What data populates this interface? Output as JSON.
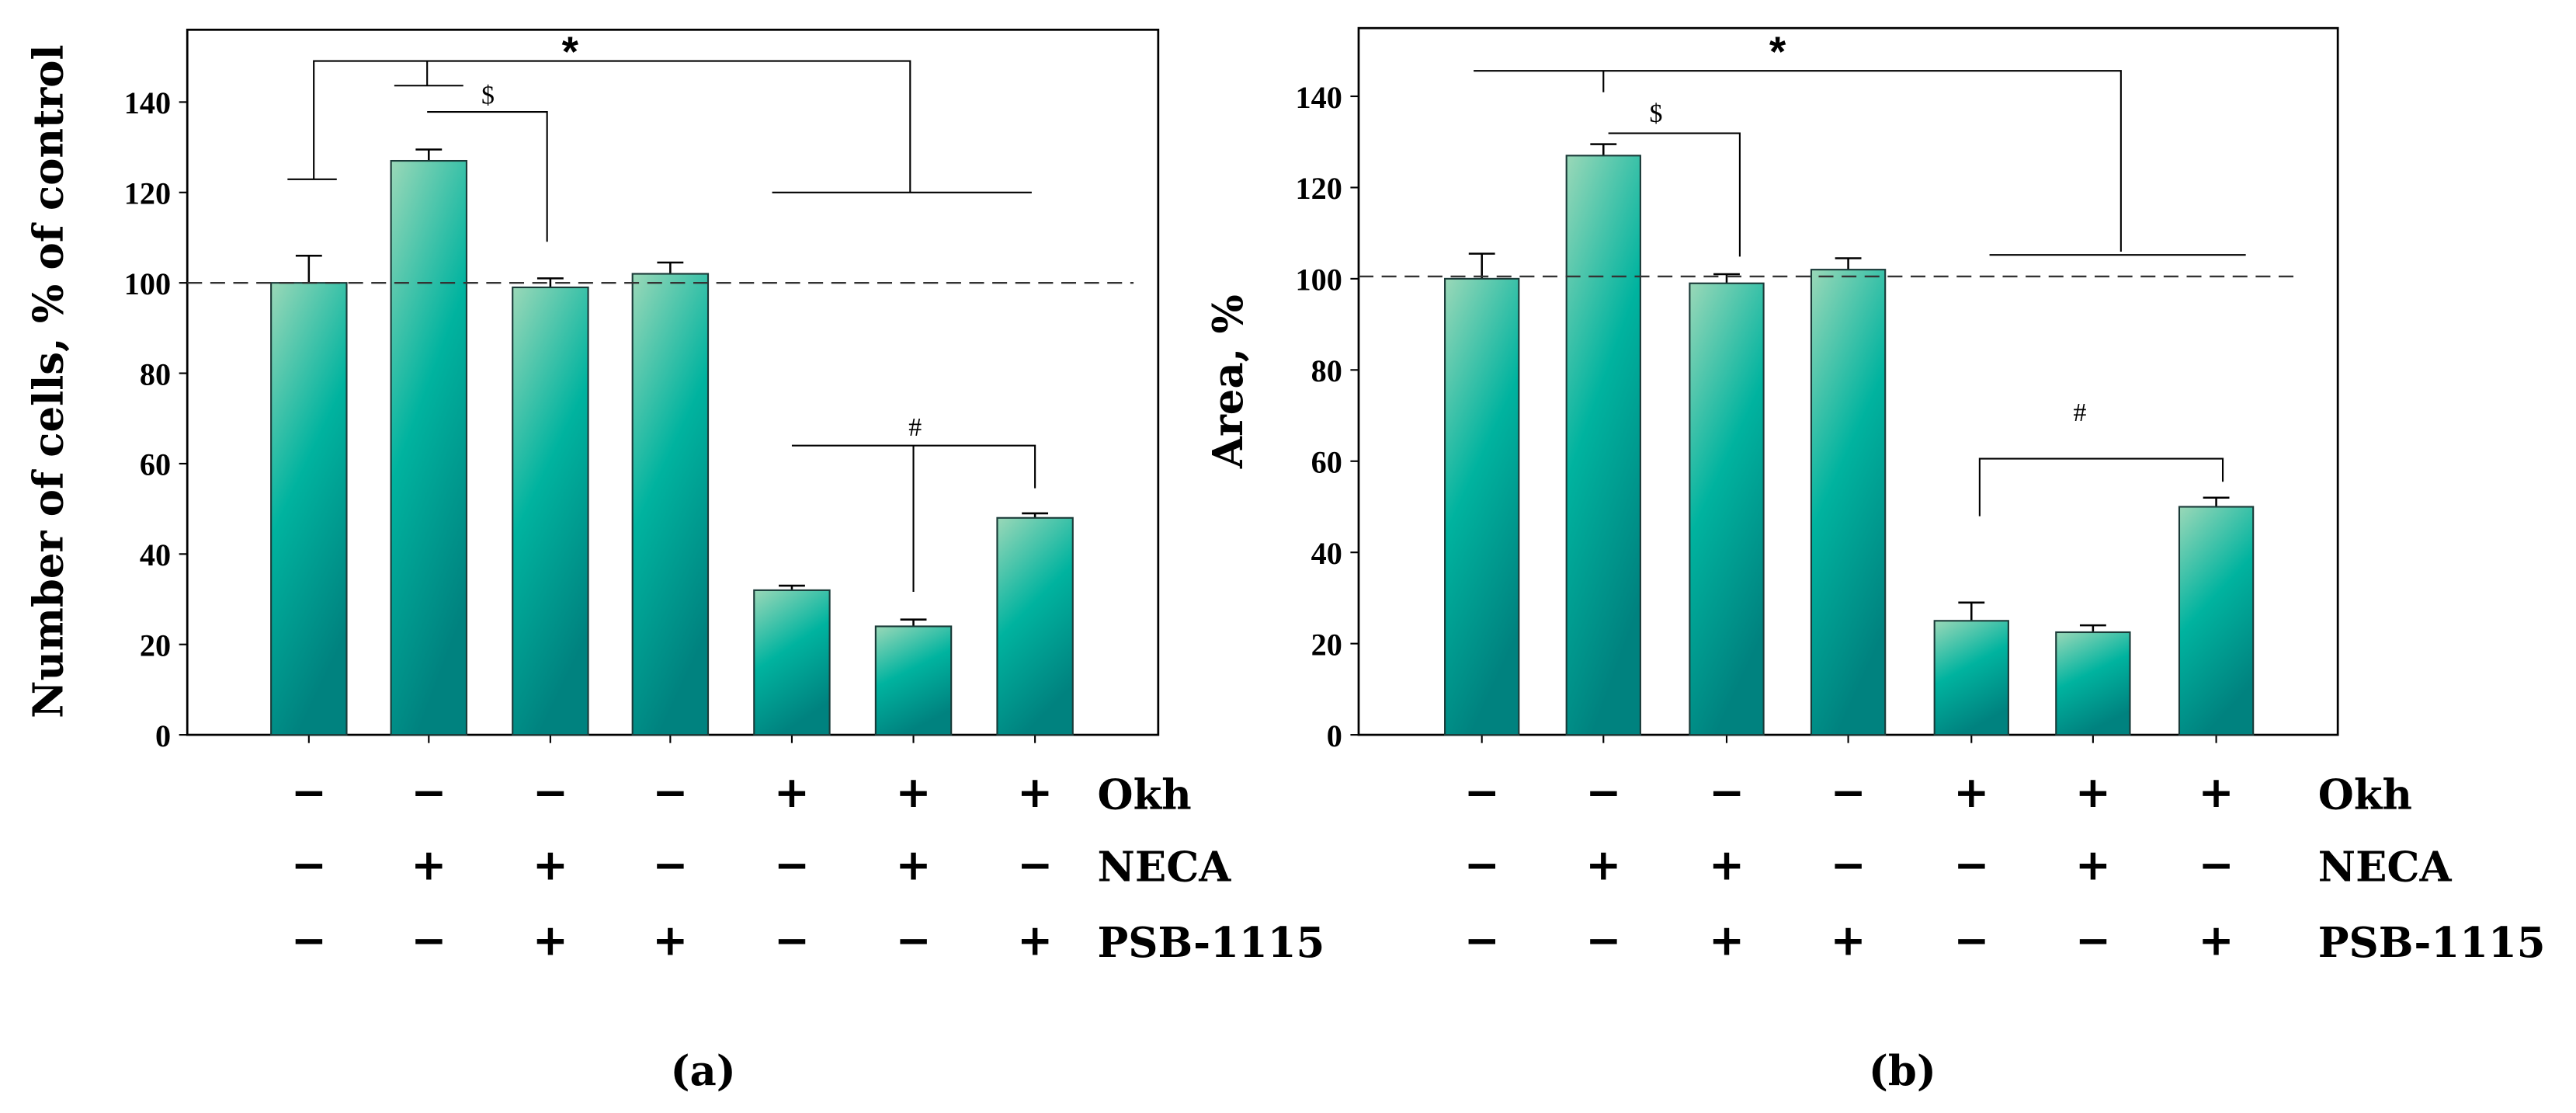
{
  "chart_data": [
    {
      "type": "bar",
      "panel_label": "(a)",
      "ylabel": "Number of cells, % of control",
      "ylim": [
        0,
        156
      ],
      "yticks": [
        "0",
        "20",
        "40",
        "60",
        "80",
        "100",
        "120",
        "140"
      ],
      "values": [
        100,
        127,
        99,
        102,
        32,
        24,
        48
      ],
      "errors": [
        6,
        2.5,
        2,
        2.5,
        1,
        1.5,
        1
      ],
      "reference_line": 100,
      "annotations": [
        "*",
        "$",
        "#"
      ]
    },
    {
      "type": "bar",
      "panel_label": "(b)",
      "ylabel": "Area, %",
      "ylim": [
        0,
        155
      ],
      "yticks": [
        "0",
        "20",
        "40",
        "60",
        "80",
        "100",
        "120",
        "140"
      ],
      "values": [
        100,
        127,
        99,
        102,
        25,
        22.5,
        50
      ],
      "errors": [
        5.5,
        2.5,
        2,
        2.5,
        4,
        1.5,
        2
      ],
      "reference_line": 100.5,
      "annotations": [
        "*",
        "$",
        "#"
      ]
    }
  ],
  "treatments": {
    "rows": [
      {
        "label": "Okh",
        "signs": [
          "−",
          "−",
          "−",
          "−",
          "+",
          "+",
          "+"
        ]
      },
      {
        "label": "NECA",
        "signs": [
          "−",
          "+",
          "+",
          "−",
          "−",
          "+",
          "−"
        ]
      },
      {
        "label": "PSB-1115",
        "signs": [
          "−",
          "−",
          "+",
          "+",
          "−",
          "−",
          "+"
        ]
      }
    ]
  },
  "colors": {
    "bar_top": "#9ad8b8",
    "bar_mid": "#00b39f",
    "bar_bottom": "#00827f",
    "line": "#000000"
  }
}
